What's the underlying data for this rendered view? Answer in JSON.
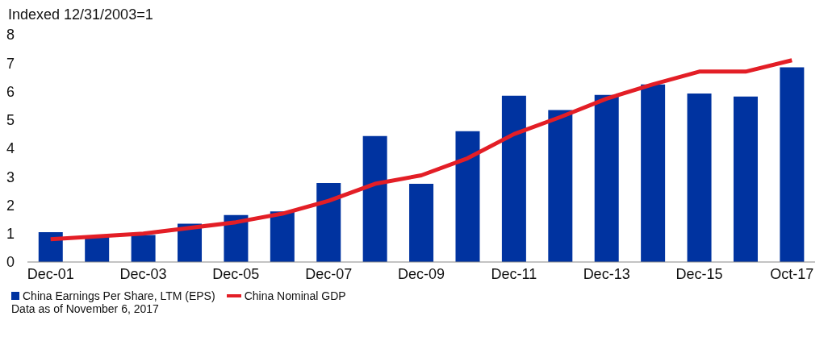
{
  "chart_data": {
    "type": "bar",
    "ylabel": "Indexed 12/31/2003=1",
    "categories": [
      "Dec-01",
      null,
      "Dec-03",
      null,
      "Dec-05",
      null,
      "Dec-07",
      null,
      "Dec-09",
      null,
      "Dec-11",
      null,
      "Dec-13",
      null,
      "Dec-15",
      null,
      "Oct-17"
    ],
    "series": [
      {
        "name": "China Earnings Per Share, LTM (EPS)",
        "color": "#0033a0",
        "values": [
          1.05,
          0.9,
          0.95,
          1.35,
          1.65,
          1.78,
          2.78,
          4.43,
          2.75,
          4.6,
          5.85,
          5.35,
          5.88,
          6.25,
          5.93,
          5.82,
          6.85
        ]
      },
      {
        "name": "China Nominal GDP",
        "type": "line",
        "color": "#e31e26",
        "values": [
          0.8,
          0.9,
          1.0,
          1.2,
          1.4,
          1.7,
          2.15,
          2.75,
          3.05,
          3.65,
          4.5,
          5.1,
          5.75,
          6.25,
          6.7,
          6.7,
          7.1
        ]
      }
    ],
    "ylim": [
      0,
      8
    ],
    "yticks": [
      0,
      1,
      2,
      3,
      4,
      5,
      6,
      7,
      8
    ],
    "grid": false,
    "legend": "bottom",
    "marker": "none",
    "line_style": "solid",
    "annotations": [
      "Data as of November 6, 2017"
    ]
  }
}
